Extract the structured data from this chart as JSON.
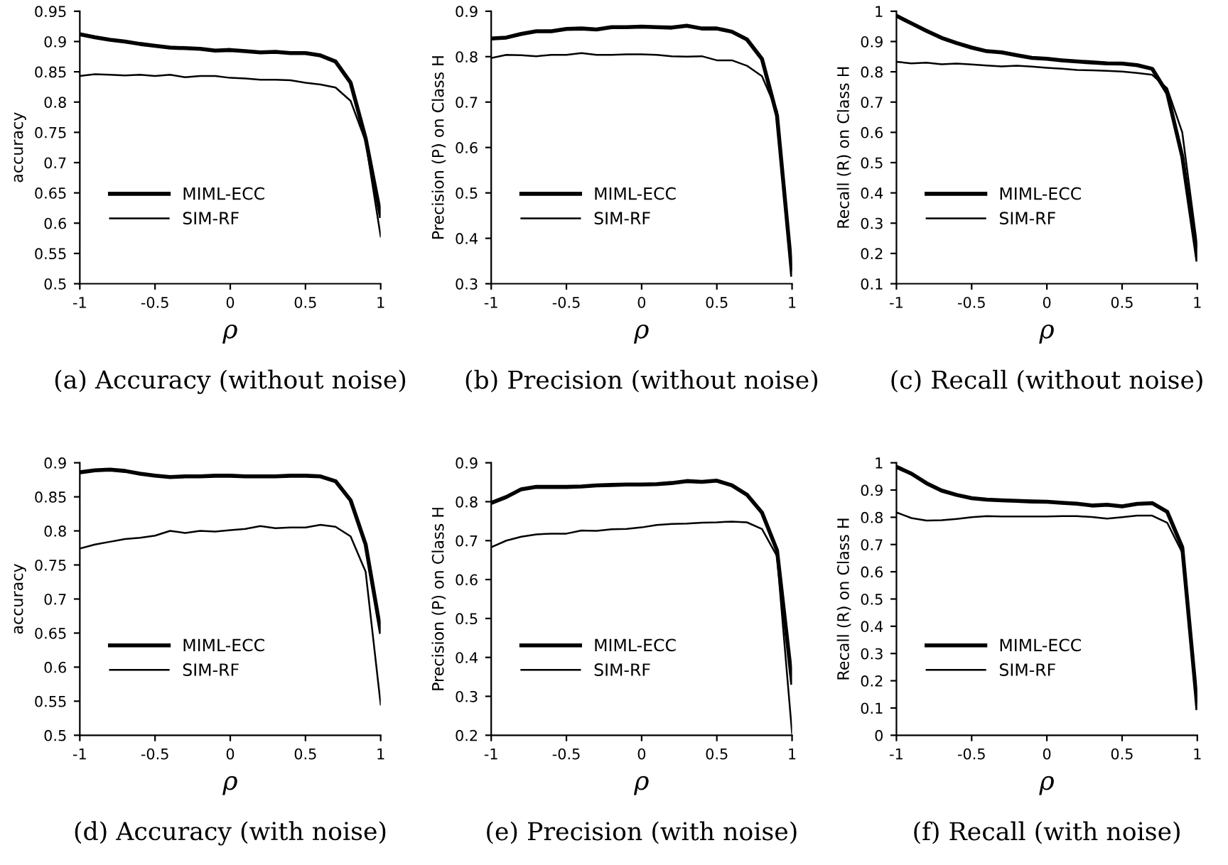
{
  "chart_data": [
    {
      "type": "line",
      "title": "(a) Accuracy (without noise)",
      "xlabel": "ρ",
      "ylabel": "accuracy",
      "x": [
        -1,
        -0.9,
        -0.8,
        -0.7,
        -0.6,
        -0.5,
        -0.4,
        -0.3,
        -0.2,
        -0.1,
        0,
        0.1,
        0.2,
        0.3,
        0.4,
        0.5,
        0.6,
        0.7,
        0.8,
        0.9,
        1
      ],
      "xlim": [
        -1,
        1
      ],
      "xticks": [
        -1,
        -0.5,
        0,
        0.5,
        1
      ],
      "ylim": [
        0.5,
        0.95
      ],
      "yticks": [
        0.5,
        0.55,
        0.6,
        0.65,
        0.7,
        0.75,
        0.8,
        0.85,
        0.9,
        0.95
      ],
      "legend": "lower left",
      "grid": false,
      "series": [
        {
          "name": "MIML-ECC",
          "color": "#000000",
          "values": [
            0.912,
            0.907,
            0.903,
            0.9,
            0.896,
            0.893,
            0.89,
            0.889,
            0.888,
            0.885,
            0.886,
            0.884,
            0.882,
            0.883,
            0.881,
            0.881,
            0.877,
            0.867,
            0.832,
            0.74,
            0.612
          ]
        },
        {
          "name": "SIM-RF",
          "color": "#000000",
          "values": [
            0.843,
            0.846,
            0.845,
            0.844,
            0.845,
            0.843,
            0.845,
            0.841,
            0.843,
            0.843,
            0.84,
            0.839,
            0.837,
            0.837,
            0.836,
            0.832,
            0.829,
            0.824,
            0.802,
            0.735,
            0.578
          ]
        }
      ]
    },
    {
      "type": "line",
      "title": "(b) Precision (without noise)",
      "xlabel": "ρ",
      "ylabel": "Precision (P) on Class H",
      "x": [
        -1,
        -0.9,
        -0.8,
        -0.7,
        -0.6,
        -0.5,
        -0.4,
        -0.3,
        -0.2,
        -0.1,
        0,
        0.1,
        0.2,
        0.3,
        0.4,
        0.5,
        0.6,
        0.7,
        0.8,
        0.9,
        1
      ],
      "xlim": [
        -1,
        1
      ],
      "xticks": [
        -1,
        -0.5,
        0,
        0.5,
        1
      ],
      "ylim": [
        0.3,
        0.9
      ],
      "yticks": [
        0.3,
        0.4,
        0.5,
        0.6,
        0.7,
        0.8,
        0.9
      ],
      "legend": "lower left",
      "grid": false,
      "series": [
        {
          "name": "MIML-ECC",
          "color": "#000000",
          "values": [
            0.84,
            0.842,
            0.85,
            0.856,
            0.856,
            0.861,
            0.862,
            0.86,
            0.865,
            0.865,
            0.866,
            0.865,
            0.864,
            0.868,
            0.862,
            0.862,
            0.855,
            0.838,
            0.795,
            0.67,
            0.32
          ]
        },
        {
          "name": "SIM-RF",
          "color": "#000000",
          "values": [
            0.797,
            0.804,
            0.803,
            0.801,
            0.804,
            0.804,
            0.808,
            0.804,
            0.804,
            0.805,
            0.805,
            0.804,
            0.801,
            0.8,
            0.801,
            0.792,
            0.792,
            0.78,
            0.757,
            0.68,
            0.33
          ]
        }
      ]
    },
    {
      "type": "line",
      "title": "(c) Recall (without noise)",
      "xlabel": "ρ",
      "ylabel": "Recall (R) on Class H",
      "x": [
        -1,
        -0.9,
        -0.8,
        -0.7,
        -0.6,
        -0.5,
        -0.4,
        -0.3,
        -0.2,
        -0.1,
        0,
        0.1,
        0.2,
        0.3,
        0.4,
        0.5,
        0.6,
        0.7,
        0.8,
        0.9,
        1
      ],
      "xlim": [
        -1,
        1
      ],
      "xticks": [
        -1,
        -0.5,
        0,
        0.5,
        1
      ],
      "ylim": [
        0.1,
        1
      ],
      "yticks": [
        0.1,
        0.2,
        0.3,
        0.4,
        0.5,
        0.6,
        0.7,
        0.8,
        0.9,
        1
      ],
      "legend": "lower left",
      "grid": false,
      "series": [
        {
          "name": "MIML-ECC",
          "color": "#000000",
          "values": [
            0.985,
            0.96,
            0.935,
            0.912,
            0.895,
            0.88,
            0.868,
            0.864,
            0.855,
            0.846,
            0.843,
            0.838,
            0.834,
            0.831,
            0.828,
            0.827,
            0.822,
            0.81,
            0.73,
            0.52,
            0.18
          ]
        },
        {
          "name": "SIM-RF",
          "color": "#000000",
          "values": [
            0.833,
            0.828,
            0.83,
            0.825,
            0.827,
            0.824,
            0.821,
            0.818,
            0.82,
            0.817,
            0.813,
            0.81,
            0.806,
            0.805,
            0.803,
            0.801,
            0.796,
            0.79,
            0.745,
            0.6,
            0.22
          ]
        }
      ]
    },
    {
      "type": "line",
      "title": "(d) Accuracy (with noise)",
      "xlabel": "ρ",
      "ylabel": "accuracy",
      "x": [
        -1,
        -0.9,
        -0.8,
        -0.7,
        -0.6,
        -0.5,
        -0.4,
        -0.3,
        -0.2,
        -0.1,
        0,
        0.1,
        0.2,
        0.3,
        0.4,
        0.5,
        0.6,
        0.7,
        0.8,
        0.9,
        1
      ],
      "xlim": [
        -1,
        1
      ],
      "xticks": [
        -1,
        -0.5,
        0,
        0.5,
        1
      ],
      "ylim": [
        0.5,
        0.9
      ],
      "yticks": [
        0.5,
        0.55,
        0.6,
        0.65,
        0.7,
        0.75,
        0.8,
        0.85,
        0.9
      ],
      "legend": "lower left",
      "grid": false,
      "series": [
        {
          "name": "MIML-ECC",
          "color": "#000000",
          "values": [
            0.886,
            0.889,
            0.89,
            0.888,
            0.884,
            0.881,
            0.879,
            0.88,
            0.88,
            0.881,
            0.881,
            0.88,
            0.88,
            0.88,
            0.881,
            0.881,
            0.88,
            0.873,
            0.845,
            0.78,
            0.652
          ]
        },
        {
          "name": "SIM-RF",
          "color": "#000000",
          "values": [
            0.774,
            0.78,
            0.784,
            0.788,
            0.79,
            0.793,
            0.8,
            0.797,
            0.8,
            0.799,
            0.801,
            0.803,
            0.807,
            0.804,
            0.805,
            0.805,
            0.809,
            0.806,
            0.792,
            0.74,
            0.545
          ]
        }
      ]
    },
    {
      "type": "line",
      "title": "(e) Precision (with noise)",
      "xlabel": "ρ",
      "ylabel": "Precision (P) on Class H",
      "x": [
        -1,
        -0.9,
        -0.8,
        -0.7,
        -0.6,
        -0.5,
        -0.4,
        -0.3,
        -0.2,
        -0.1,
        0,
        0.1,
        0.2,
        0.3,
        0.4,
        0.5,
        0.6,
        0.7,
        0.8,
        0.9,
        1
      ],
      "xlim": [
        -1,
        1
      ],
      "xticks": [
        -1,
        -0.5,
        0,
        0.5,
        1
      ],
      "ylim": [
        0.2,
        0.9
      ],
      "yticks": [
        0.2,
        0.3,
        0.4,
        0.5,
        0.6,
        0.7,
        0.8,
        0.9
      ],
      "legend": "lower left",
      "grid": false,
      "series": [
        {
          "name": "MIML-ECC",
          "color": "#000000",
          "values": [
            0.797,
            0.812,
            0.832,
            0.838,
            0.838,
            0.838,
            0.839,
            0.842,
            0.843,
            0.844,
            0.844,
            0.845,
            0.848,
            0.853,
            0.851,
            0.854,
            0.842,
            0.818,
            0.772,
            0.675,
            0.335
          ]
        },
        {
          "name": "SIM-RF",
          "color": "#000000",
          "values": [
            0.683,
            0.7,
            0.71,
            0.716,
            0.718,
            0.718,
            0.726,
            0.725,
            0.729,
            0.73,
            0.734,
            0.74,
            0.743,
            0.744,
            0.746,
            0.747,
            0.749,
            0.747,
            0.73,
            0.66,
            0.205
          ]
        }
      ]
    },
    {
      "type": "line",
      "title": "(f) Recall (with noise)",
      "xlabel": "ρ",
      "ylabel": "Recall (R) on Class H",
      "x": [
        -1,
        -0.9,
        -0.8,
        -0.7,
        -0.6,
        -0.5,
        -0.4,
        -0.3,
        -0.2,
        -0.1,
        0,
        0.1,
        0.2,
        0.3,
        0.4,
        0.5,
        0.6,
        0.7,
        0.8,
        0.9,
        1
      ],
      "xlim": [
        -1,
        1
      ],
      "xticks": [
        -1,
        -0.5,
        0,
        0.5,
        1
      ],
      "ylim": [
        0,
        1
      ],
      "yticks": [
        0,
        0.1,
        0.2,
        0.3,
        0.4,
        0.5,
        0.6,
        0.7,
        0.8,
        0.9,
        1
      ],
      "legend": "lower left",
      "grid": false,
      "series": [
        {
          "name": "MIML-ECC",
          "color": "#000000",
          "values": [
            0.985,
            0.96,
            0.925,
            0.898,
            0.882,
            0.87,
            0.865,
            0.862,
            0.86,
            0.858,
            0.857,
            0.853,
            0.85,
            0.843,
            0.846,
            0.84,
            0.849,
            0.852,
            0.82,
            0.69,
            0.1
          ]
        },
        {
          "name": "SIM-RF",
          "color": "#000000",
          "values": [
            0.818,
            0.797,
            0.788,
            0.789,
            0.794,
            0.8,
            0.804,
            0.803,
            0.803,
            0.803,
            0.803,
            0.804,
            0.804,
            0.801,
            0.795,
            0.8,
            0.806,
            0.806,
            0.78,
            0.67,
            0.12
          ]
        }
      ]
    }
  ]
}
